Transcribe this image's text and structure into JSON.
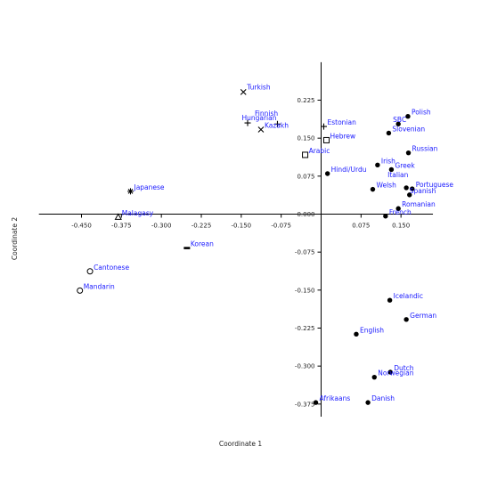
{
  "chart_data": {
    "type": "scatter",
    "xlabel": "Coordinate 1",
    "ylabel": "Coordinate 2",
    "xlim": [
      -0.53,
      0.21
    ],
    "ylim": [
      -0.4,
      0.3
    ],
    "x_ticks": [
      "-0.450",
      "-0.375",
      "-0.300",
      "-0.225",
      "-0.150",
      "-0.075",
      "0.075",
      "0.150"
    ],
    "x_tick_values": [
      -0.45,
      -0.375,
      -0.3,
      -0.225,
      -0.15,
      -0.075,
      0.075,
      0.15
    ],
    "y_ticks": [
      "0.225",
      "0.150",
      "0.075",
      "0.000",
      "-0.075",
      "-0.150",
      "-0.225",
      "-0.300",
      "-0.375"
    ],
    "y_tick_values": [
      0.225,
      0.15,
      0.075,
      0.0,
      -0.075,
      -0.15,
      -0.225,
      -0.3,
      -0.375
    ],
    "grid": false,
    "points": [
      {
        "label": "Turkish",
        "x": -0.146,
        "y": 0.241,
        "marker": "x"
      },
      {
        "label": "Finnish",
        "x": -0.138,
        "y": 0.18,
        "marker": "+"
      },
      {
        "label": "Hungarian",
        "x": -0.082,
        "y": 0.178,
        "marker": "+"
      },
      {
        "label": "Kazakh",
        "x": -0.113,
        "y": 0.167,
        "marker": "x"
      },
      {
        "label": "Estonian",
        "x": 0.005,
        "y": 0.173,
        "marker": "+"
      },
      {
        "label": "Hebrew",
        "x": 0.01,
        "y": 0.146,
        "marker": "square"
      },
      {
        "label": "Arabic",
        "x": -0.03,
        "y": 0.117,
        "marker": "square"
      },
      {
        "label": "Hindi/Urdu",
        "x": 0.012,
        "y": 0.08,
        "marker": "dot"
      },
      {
        "label": "Japanese",
        "x": -0.358,
        "y": 0.045,
        "marker": "star"
      },
      {
        "label": "Malagasy",
        "x": -0.381,
        "y": -0.006,
        "marker": "triangle"
      },
      {
        "label": "Korean",
        "x": -0.252,
        "y": -0.067,
        "marker": "dash"
      },
      {
        "label": "Cantonese",
        "x": -0.434,
        "y": -0.113,
        "marker": "circle"
      },
      {
        "label": "Mandarin",
        "x": -0.453,
        "y": -0.151,
        "marker": "circle"
      },
      {
        "label": "Polish",
        "x": 0.163,
        "y": 0.193,
        "marker": "dot"
      },
      {
        "label": "SBC",
        "x": 0.145,
        "y": 0.178,
        "marker": "dot"
      },
      {
        "label": "Slovenian",
        "x": 0.127,
        "y": 0.16,
        "marker": "dot"
      },
      {
        "label": "Russian",
        "x": 0.164,
        "y": 0.121,
        "marker": "dot"
      },
      {
        "label": "Irish",
        "x": 0.106,
        "y": 0.097,
        "marker": "dot"
      },
      {
        "label": "Greek",
        "x": 0.132,
        "y": 0.088,
        "marker": "dot"
      },
      {
        "label": "Italian",
        "x": 0.16,
        "y": 0.052,
        "marker": "dot"
      },
      {
        "label": "Welsh",
        "x": 0.097,
        "y": 0.049,
        "marker": "dot"
      },
      {
        "label": "Portuguese",
        "x": 0.171,
        "y": 0.05,
        "marker": "dot"
      },
      {
        "label": "Spanish",
        "x": 0.166,
        "y": 0.038,
        "marker": "dot"
      },
      {
        "label": "Romanian",
        "x": 0.145,
        "y": 0.011,
        "marker": "dot"
      },
      {
        "label": "French",
        "x": 0.121,
        "y": -0.004,
        "marker": "dot"
      },
      {
        "label": "Icelandic",
        "x": 0.129,
        "y": -0.17,
        "marker": "dot"
      },
      {
        "label": "German",
        "x": 0.16,
        "y": -0.208,
        "marker": "dot"
      },
      {
        "label": "English",
        "x": 0.066,
        "y": -0.237,
        "marker": "dot"
      },
      {
        "label": "Dutch",
        "x": 0.13,
        "y": -0.312,
        "marker": "dot"
      },
      {
        "label": "Norwegian",
        "x": 0.1,
        "y": -0.322,
        "marker": "dot"
      },
      {
        "label": "Afrikaans",
        "x": -0.01,
        "y": -0.372,
        "marker": "dot"
      },
      {
        "label": "Danish",
        "x": 0.088,
        "y": -0.372,
        "marker": "dot"
      }
    ],
    "colors": {
      "marker": "#000000",
      "label": "#1a1aff",
      "axis": "#000000"
    }
  }
}
